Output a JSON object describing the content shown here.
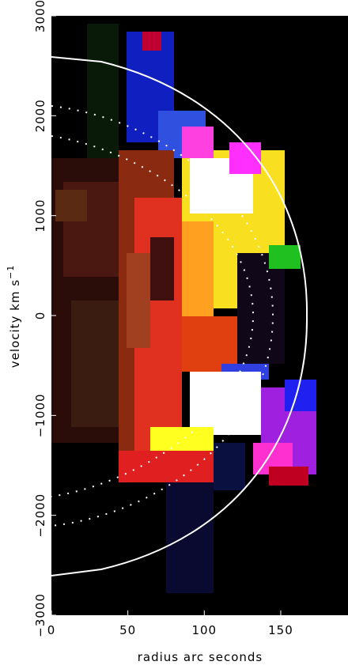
{
  "chart_data": {
    "type": "image",
    "x_label": "radius arc seconds",
    "y_label": "velocity km s",
    "y_label_superscript": "−1",
    "xlim": [
      0,
      194
    ],
    "ylim": [
      -3000,
      3000
    ],
    "xticks": [
      0,
      50,
      100,
      150
    ],
    "yticks": [
      {
        "value": -3000,
        "label": "−3000"
      },
      {
        "value": -2000,
        "label": "−2000"
      },
      {
        "value": -1000,
        "label": "−1000"
      },
      0,
      1000,
      2000,
      3000
    ]
  }
}
